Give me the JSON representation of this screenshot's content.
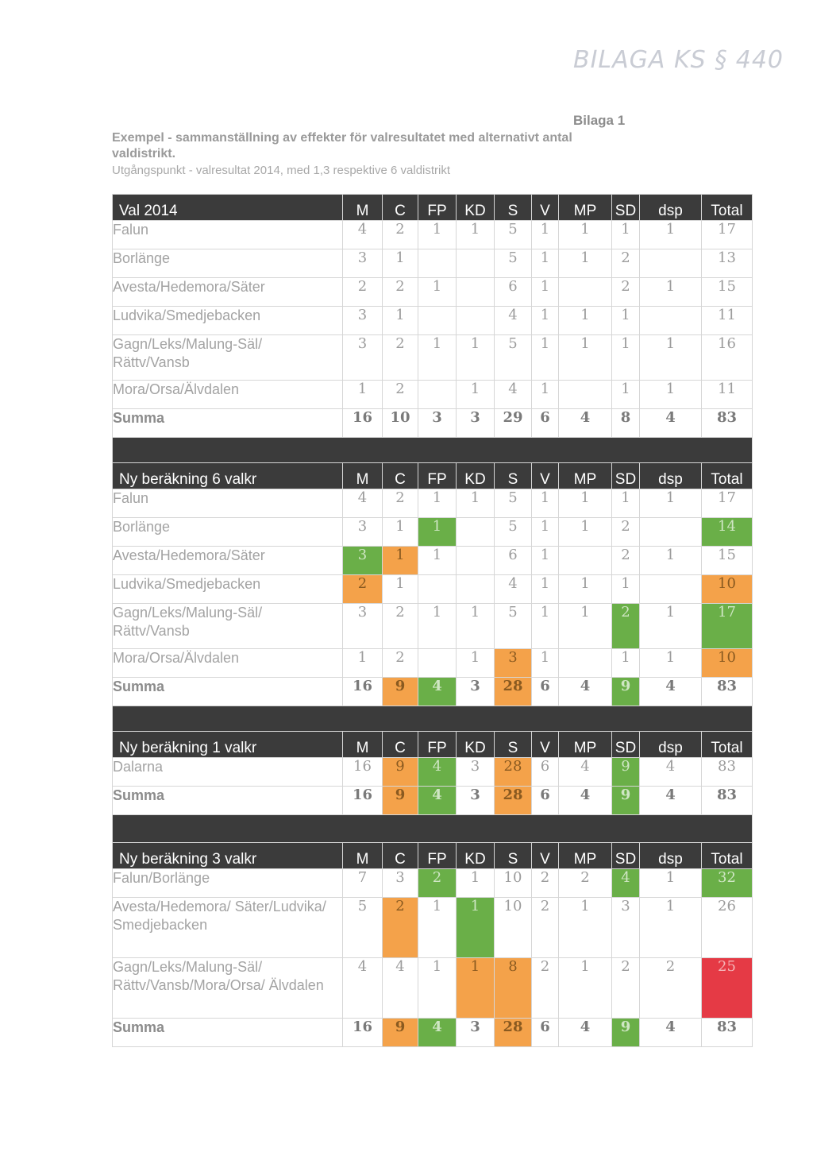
{
  "stamp": "BILAGA KS § 440",
  "bilaga": "Bilaga 1",
  "heading": "Exempel - sammanställning av effekter för valresultatet med alternativt antal valdistrikt.",
  "subheading": "Utgångspunkt - valresultat 2014, med 1,3 respektive 6 valdistrikt",
  "parties": [
    "M",
    "C",
    "FP",
    "KD",
    "S",
    "V",
    "MP",
    "SD",
    "dsp",
    "Total"
  ],
  "colors": {
    "green": "#6aaf48",
    "orange": "#f4a24a",
    "red": "#e53a45",
    "header": "#3b3b3b"
  },
  "tables": [
    {
      "title": "Val 2014",
      "rows": [
        {
          "name": "Falun",
          "values": [
            "4",
            "2",
            "1",
            "1",
            "5",
            "1",
            "1",
            "1",
            "1",
            "17"
          ]
        },
        {
          "name": "Borlänge",
          "values": [
            "3",
            "1",
            "",
            "",
            "5",
            "1",
            "1",
            "2",
            "",
            "13"
          ]
        },
        {
          "name": "Avesta/Hedemora/Säter",
          "values": [
            "2",
            "2",
            "1",
            "",
            "6",
            "1",
            "",
            "2",
            "1",
            "15"
          ]
        },
        {
          "name": "Ludvika/Smedjebacken",
          "values": [
            "3",
            "1",
            "",
            "",
            "4",
            "1",
            "1",
            "1",
            "",
            "11"
          ]
        },
        {
          "name": "Gagn/Leks/Malung-Säl/ Rättv/Vansb",
          "values": [
            "3",
            "2",
            "1",
            "1",
            "5",
            "1",
            "1",
            "1",
            "1",
            "16"
          ]
        },
        {
          "name": "Mora/Orsa/Älvdalen",
          "values": [
            "1",
            "2",
            "",
            "1",
            "4",
            "1",
            "",
            "1",
            "1",
            "11"
          ]
        },
        {
          "name": "Summa",
          "values": [
            "16",
            "10",
            "3",
            "3",
            "29",
            "6",
            "4",
            "8",
            "4",
            "83"
          ]
        }
      ]
    },
    {
      "title": "Ny beräkning 6 valkr",
      "rows": [
        {
          "name": "Falun",
          "values": [
            "4",
            "2",
            "1",
            "1",
            "5",
            "1",
            "1",
            "1",
            "1",
            "17"
          ]
        },
        {
          "name": "Borlänge",
          "values": [
            "3",
            "1",
            "1",
            "",
            "5",
            "1",
            "1",
            "2",
            "",
            "14"
          ]
        },
        {
          "name": "Avesta/Hedemora/Säter",
          "values": [
            "3",
            "1",
            "1",
            "",
            "6",
            "1",
            "",
            "2",
            "1",
            "15"
          ]
        },
        {
          "name": "Ludvika/Smedjebacken",
          "values": [
            "2",
            "1",
            "",
            "",
            "4",
            "1",
            "1",
            "1",
            "",
            "10"
          ]
        },
        {
          "name": "Gagn/Leks/Malung-Säl/ Rättv/Vansb",
          "values": [
            "3",
            "2",
            "1",
            "1",
            "5",
            "1",
            "1",
            "2",
            "1",
            "17"
          ]
        },
        {
          "name": "Mora/Orsa/Älvdalen",
          "values": [
            "1",
            "2",
            "",
            "1",
            "3",
            "1",
            "",
            "1",
            "1",
            "10"
          ]
        },
        {
          "name": "Summa",
          "values": [
            "16",
            "9",
            "4",
            "3",
            "28",
            "6",
            "4",
            "9",
            "4",
            "83"
          ]
        }
      ]
    },
    {
      "title": "Ny beräkning 1 valkr",
      "rows": [
        {
          "name": "Dalarna",
          "values": [
            "16",
            "9",
            "4",
            "3",
            "28",
            "6",
            "4",
            "9",
            "4",
            "83"
          ]
        },
        {
          "name": "Summa",
          "values": [
            "16",
            "9",
            "4",
            "3",
            "28",
            "6",
            "4",
            "9",
            "4",
            "83"
          ]
        }
      ]
    },
    {
      "title": "Ny beräkning 3 valkr",
      "rows": [
        {
          "name": "Falun/Borlänge",
          "values": [
            "7",
            "3",
            "2",
            "1",
            "10",
            "2",
            "2",
            "4",
            "1",
            "32"
          ]
        },
        {
          "name": "Avesta/Hedemora/ Säter/Ludvika/ Smedjebacken",
          "values": [
            "5",
            "2",
            "1",
            "1",
            "10",
            "2",
            "1",
            "3",
            "1",
            "26"
          ]
        },
        {
          "name": "Gagn/Leks/Malung-Säl/ Rättv/Vansb/Mora/Orsa/ Älvdalen",
          "values": [
            "4",
            "4",
            "1",
            "1",
            "8",
            "2",
            "1",
            "2",
            "2",
            "25"
          ]
        },
        {
          "name": "Summa",
          "values": [
            "16",
            "9",
            "4",
            "3",
            "28",
            "6",
            "4",
            "9",
            "4",
            "83"
          ]
        }
      ]
    }
  ]
}
